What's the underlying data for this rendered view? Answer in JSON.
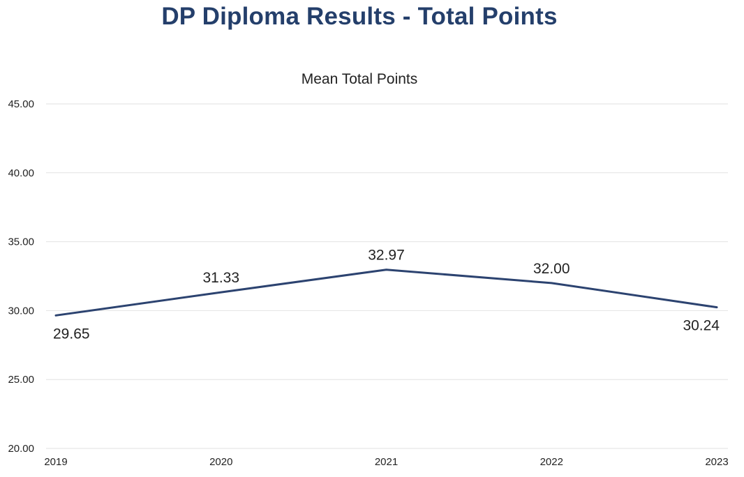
{
  "page": {
    "title": "DP Diploma Results - Total Points"
  },
  "colors": {
    "title": "#243f6b",
    "line": "#2c4370",
    "grid": "#e2e2e2",
    "text": "#222222"
  },
  "chart_data": {
    "type": "line",
    "title": "Mean Total Points",
    "xlabel": "",
    "ylabel": "",
    "categories": [
      "2019",
      "2020",
      "2021",
      "2022",
      "2023"
    ],
    "series": [
      {
        "values": [
          29.65,
          31.33,
          32.97,
          32.0,
          30.24
        ],
        "labels": [
          "29.65",
          "31.33",
          "32.97",
          "32.00",
          "30.24"
        ]
      }
    ],
    "ylim": [
      20,
      45
    ],
    "yticks": [
      20,
      25,
      30,
      35,
      40,
      45
    ],
    "ytick_labels": [
      "20.00",
      "25.00",
      "30.00",
      "35.00",
      "40.00",
      "45.00"
    ],
    "grid": true,
    "legend": "none"
  }
}
